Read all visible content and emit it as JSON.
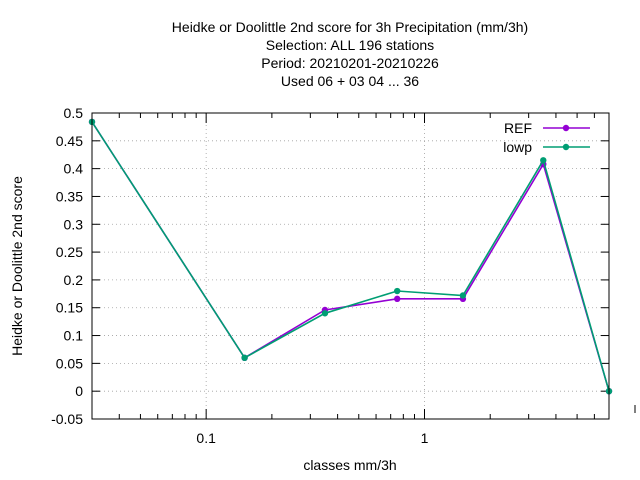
{
  "chart_data": {
    "type": "line",
    "title_lines": [
      "Heidke or Doolittle 2nd score  for 3h Precipitation (mm/3h)",
      "Selection: ALL    196 stations",
      "Period: 20210201-20210226",
      "Used  06  + 03 04 ... 36"
    ],
    "xlabel": "classes mm/3h",
    "ylabel": "Heidke or Doolittle 2nd score",
    "x_scale": "log",
    "xlim": [
      0.03,
      7
    ],
    "ylim": [
      -0.05,
      0.5
    ],
    "x_ticks": [
      {
        "value": 0.1,
        "label": "0.1"
      },
      {
        "value": 1,
        "label": "1"
      }
    ],
    "y_ticks": [
      {
        "value": -0.05,
        "label": "-0.05"
      },
      {
        "value": 0,
        "label": "0"
      },
      {
        "value": 0.05,
        "label": "0.05"
      },
      {
        "value": 0.1,
        "label": "0.1"
      },
      {
        "value": 0.15,
        "label": "0.15"
      },
      {
        "value": 0.2,
        "label": "0.2"
      },
      {
        "value": 0.25,
        "label": "0.25"
      },
      {
        "value": 0.3,
        "label": "0.3"
      },
      {
        "value": 0.35,
        "label": "0.35"
      },
      {
        "value": 0.4,
        "label": "0.4"
      },
      {
        "value": 0.45,
        "label": "0.45"
      },
      {
        "value": 0.5,
        "label": "0.5"
      }
    ],
    "grid": true,
    "legend_position": "top-right",
    "x": [
      0.03,
      0.15,
      0.35,
      0.75,
      1.5,
      3.5,
      7
    ],
    "series": [
      {
        "name": "REF",
        "color": "#9400d3",
        "values": [
          0.484,
          0.06,
          0.146,
          0.166,
          0.166,
          0.408,
          0.0
        ]
      },
      {
        "name": "lowp",
        "color": "#009e73",
        "values": [
          0.484,
          0.06,
          0.14,
          0.18,
          0.172,
          0.415,
          0.0
        ]
      }
    ]
  }
}
